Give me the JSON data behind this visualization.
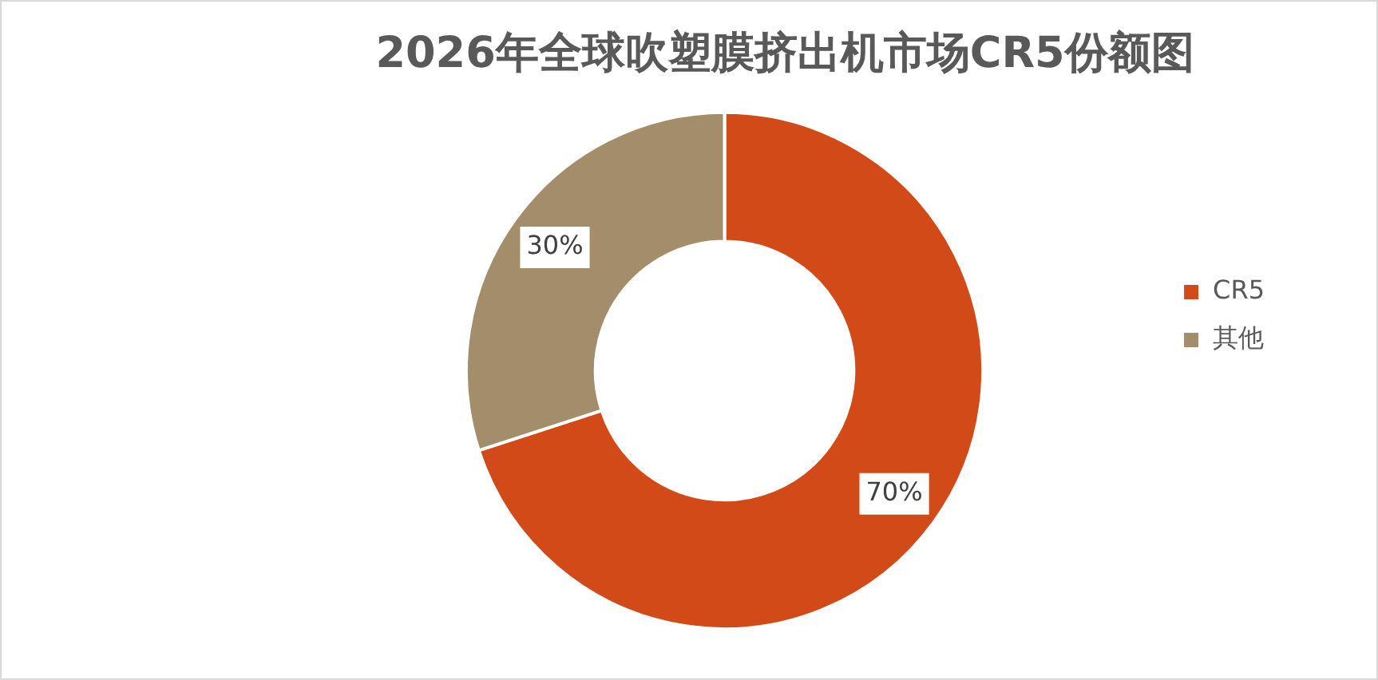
{
  "chart_data": {
    "type": "donut",
    "title": "2026年全球吹塑膜挤出机市场CR5份额图",
    "categories": [
      "CR5",
      "其他"
    ],
    "values": [
      70,
      30
    ],
    "colors": [
      "#d24a17",
      "#a38d6a"
    ],
    "value_labels": [
      "70%",
      "30%"
    ],
    "legend": "right"
  }
}
